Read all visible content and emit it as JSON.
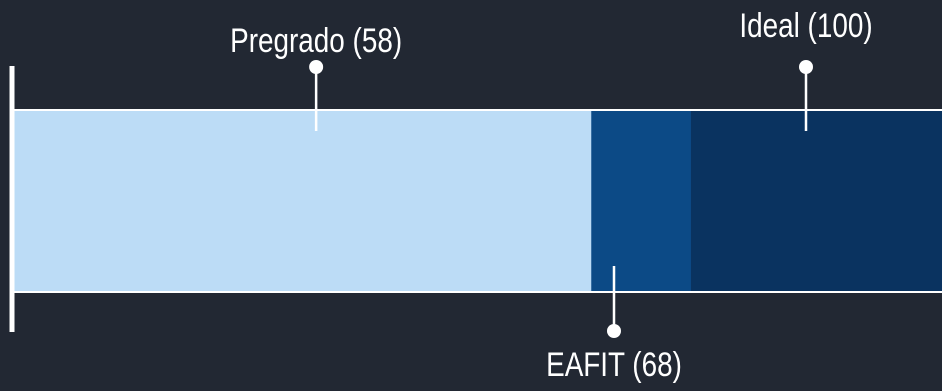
{
  "chart_data": {
    "type": "bar",
    "orientation": "horizontal",
    "xlim": [
      0,
      100
    ],
    "segments": [
      {
        "name": "Pregrado",
        "value": 58,
        "label": "Pregrado (58)",
        "color": "#bcdcf6",
        "label_side": "top"
      },
      {
        "name": "EAFIT",
        "value": 68,
        "label": "EAFIT (68)",
        "color": "#0c4a86",
        "label_side": "bottom"
      },
      {
        "name": "Ideal",
        "value": 100,
        "label": "Ideal (100)",
        "color": "#0a3360",
        "label_side": "top"
      }
    ],
    "colors": {
      "background": "#222833",
      "axis": "#ffffff",
      "text": "#ffffff"
    }
  }
}
